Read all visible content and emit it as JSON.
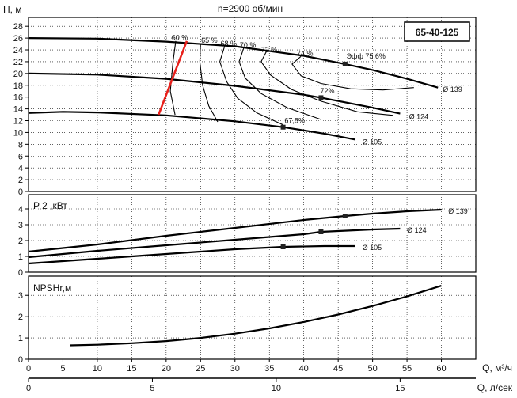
{
  "chart_data": {
    "title": "n=2900 об/мин",
    "model": "65-40-125",
    "x_axis_q_m3h": {
      "label": "Q, м³/ч",
      "range": [
        0,
        65
      ],
      "ticks": [
        "0",
        "5",
        "10",
        "15",
        "20",
        "25",
        "30",
        "35",
        "40",
        "45",
        "50",
        "55",
        "60"
      ]
    },
    "x_axis_q_ls": {
      "label": "Q, л/сек",
      "ticks": [
        {
          "text": "0",
          "at_m3h": 0
        },
        {
          "text": "5",
          "at_m3h": 18
        },
        {
          "text": "10",
          "at_m3h": 36
        },
        {
          "text": "15",
          "at_m3h": 54
        }
      ]
    },
    "panels": [
      {
        "id": "head",
        "type": "line",
        "ylabel": "H, м",
        "ylim": [
          0,
          29.5
        ],
        "yticks": [
          "0",
          "2",
          "4",
          "6",
          "8",
          "10",
          "12",
          "14",
          "16",
          "18",
          "20",
          "22",
          "24",
          "26",
          "28"
        ],
        "series": [
          {
            "name": "Ø 139",
            "x": [
              0,
              10,
              20,
              30,
              40,
              46,
              50,
              55,
              59.5
            ],
            "y": [
              26.0,
              25.9,
              25.4,
              24.6,
              23.0,
              21.6,
              20.6,
              19.1,
              17.6
            ],
            "marker": {
              "x": 46,
              "y": 21.6
            }
          },
          {
            "name": "Ø 124",
            "x": [
              0,
              10,
              20,
              30,
              40,
              42.5,
              50,
              54
            ],
            "y": [
              20.0,
              19.8,
              19.1,
              17.9,
              16.4,
              15.9,
              14.2,
              13.2
            ],
            "marker": {
              "x": 42.5,
              "y": 15.9
            }
          },
          {
            "name": "Ø 105",
            "x": [
              0,
              5,
              10,
              20,
              30,
              37,
              43,
              47.5
            ],
            "y": [
              13.3,
              13.5,
              13.4,
              12.9,
              11.9,
              10.9,
              9.8,
              8.8
            ],
            "marker": {
              "x": 37,
              "y": 10.9
            }
          }
        ],
        "series_labels": [
          {
            "text": "Ø 139",
            "x": 60.2,
            "y": 17.3
          },
          {
            "text": "Ø 124",
            "x": 55.3,
            "y": 12.7
          },
          {
            "text": "Ø 105",
            "x": 48.5,
            "y": 8.4
          }
        ],
        "efficiency_curves": [
          {
            "label": "60 %",
            "x": [
              21.4,
              21.0,
              20.6,
              21.3
            ],
            "y": [
              25.5,
              22.0,
              17.0,
              13.0
            ],
            "label_at": [
              20.8,
              25.7
            ]
          },
          {
            "label": "65 %",
            "x": [
              25.0,
              24.9,
              25.3,
              26.2,
              27.5
            ],
            "y": [
              25.0,
              22.0,
              18.0,
              14.5,
              11.8
            ],
            "label_at": [
              25.1,
              25.2
            ]
          },
          {
            "label": "68 %",
            "x": [
              28.5,
              27.8,
              28.8,
              30.4,
              33.2,
              37.0
            ],
            "y": [
              24.6,
              22.0,
              18.6,
              15.8,
              13.3,
              11.3
            ],
            "label_at": [
              27.9,
              24.7
            ]
          },
          {
            "label": "70 %",
            "x": [
              31.3,
              30.6,
              31.5,
              33.8,
              37.6,
              42.5
            ],
            "y": [
              24.4,
              22.0,
              19.2,
              16.6,
              14.2,
              12.2
            ],
            "label_at": [
              30.7,
              24.4
            ]
          },
          {
            "label": "72 %",
            "x": [
              34.6,
              33.8,
              35.2,
              38.2,
              42.5,
              47.8,
              53.0
            ],
            "y": [
              23.8,
              22.0,
              19.7,
              17.3,
              15.3,
              13.5,
              12.9
            ],
            "label_at": [
              33.8,
              23.6
            ]
          },
          {
            "label": "74 %",
            "x": [
              39.6,
              38.3,
              39.6,
              42.5,
              46.8,
              51.5,
              56.0
            ],
            "y": [
              22.9,
              21.6,
              19.6,
              18.3,
              17.4,
              17.2,
              17.6
            ],
            "label_at": [
              39.0,
              23.0
            ]
          }
        ],
        "efficiency_labels": [
          {
            "text": "Эфф  75,6%",
            "x": 46.2,
            "y": 22.5
          },
          {
            "text": "72%",
            "x": 42.4,
            "y": 16.6
          },
          {
            "text": "67,8%",
            "x": 37.2,
            "y": 11.6
          }
        ],
        "red_line": {
          "x": [
            18.9,
            23.0
          ],
          "y": [
            13.0,
            25.5
          ]
        }
      },
      {
        "id": "power",
        "type": "line",
        "ylabel": "P 2 ,кВт",
        "ylim": [
          0,
          4.9
        ],
        "yticks": [
          "0",
          "1",
          "2",
          "3",
          "4"
        ],
        "series": [
          {
            "name": "Ø 139",
            "x": [
              0,
              10,
              20,
              30,
              40,
              46,
              50,
              55,
              60
            ],
            "y": [
              1.3,
              1.75,
              2.3,
              2.8,
              3.3,
              3.55,
              3.7,
              3.85,
              3.95
            ],
            "marker": {
              "x": 46,
              "y": 3.55
            }
          },
          {
            "name": "Ø 124",
            "x": [
              0,
              10,
              20,
              30,
              40,
              42.5,
              50,
              54
            ],
            "y": [
              0.95,
              1.35,
              1.7,
              2.05,
              2.4,
              2.55,
              2.7,
              2.75
            ],
            "marker": {
              "x": 42.5,
              "y": 2.55
            }
          },
          {
            "name": "Ø 105",
            "x": [
              0,
              10,
              20,
              30,
              37,
              43,
              47.5
            ],
            "y": [
              0.55,
              0.85,
              1.15,
              1.45,
              1.6,
              1.65,
              1.65
            ],
            "marker": {
              "x": 37,
              "y": 1.6
            }
          }
        ],
        "series_labels": [
          {
            "text": "Ø 139",
            "x": 61.0,
            "y": 3.85
          },
          {
            "text": "Ø 124",
            "x": 55.0,
            "y": 2.65
          },
          {
            "text": "Ø 105",
            "x": 48.5,
            "y": 1.55
          }
        ]
      },
      {
        "id": "npsh",
        "type": "line",
        "ylabel": "NPSHr,м",
        "ylim": [
          0,
          3.9
        ],
        "yticks": [
          "0",
          "1",
          "2",
          "3"
        ],
        "series": [
          {
            "name": "NPSHr",
            "x": [
              6,
              10,
              15,
              20,
              25,
              30,
              35,
              40,
              45,
              50,
              55,
              60
            ],
            "y": [
              0.65,
              0.68,
              0.75,
              0.85,
              1.0,
              1.2,
              1.45,
              1.75,
              2.1,
              2.5,
              2.95,
              3.45
            ]
          }
        ]
      }
    ]
  }
}
